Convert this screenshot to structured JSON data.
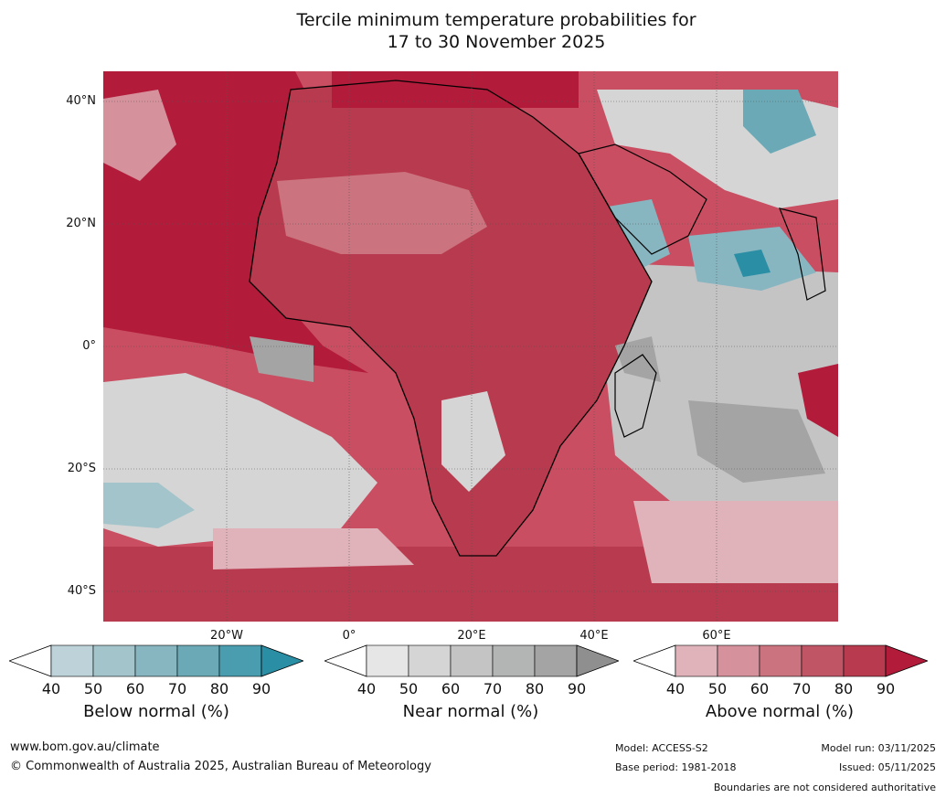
{
  "title": {
    "line1": "Tercile minimum temperature probabilities for",
    "line2": "17 to 30 November 2025"
  },
  "map": {
    "latitude_labels": [
      "40°N",
      "20°N",
      "0°",
      "20°S",
      "40°S"
    ],
    "longitude_labels": [
      "20°W",
      "0°",
      "20°E",
      "40°E",
      "60°E"
    ]
  },
  "legends": {
    "ticks": [
      "40",
      "50",
      "60",
      "70",
      "80",
      "90"
    ],
    "below": {
      "title": "Below normal (%)",
      "colors": [
        "#ffffff",
        "#bdd3d9",
        "#a4c4cb",
        "#87b5c0",
        "#6aa9b5",
        "#4a9caf",
        "#2a8ea4"
      ]
    },
    "near": {
      "title": "Near normal (%)",
      "colors": [
        "#ffffff",
        "#e6e6e6",
        "#d5d5d5",
        "#c4c4c4",
        "#b3b4b4",
        "#a4a4a4",
        "#8f8f8f"
      ]
    },
    "above": {
      "title": "Above normal (%)",
      "colors": [
        "#ffffff",
        "#e0b3ba",
        "#d6929c",
        "#cb737e",
        "#c05566",
        "#b83a4f",
        "#b31b3b"
      ]
    }
  },
  "footer": {
    "website": "www.bom.gov.au/climate",
    "copyright": "© Commonwealth of Australia 2025, Australian Bureau of Meteorology",
    "model": "Model: ACCESS-S2",
    "base_period": "Base period: 1981-2018",
    "model_run": "Model run: 03/11/2025",
    "issued": "Issued: 05/11/2025",
    "disclaimer": "Boundaries are not considered authoritative"
  }
}
